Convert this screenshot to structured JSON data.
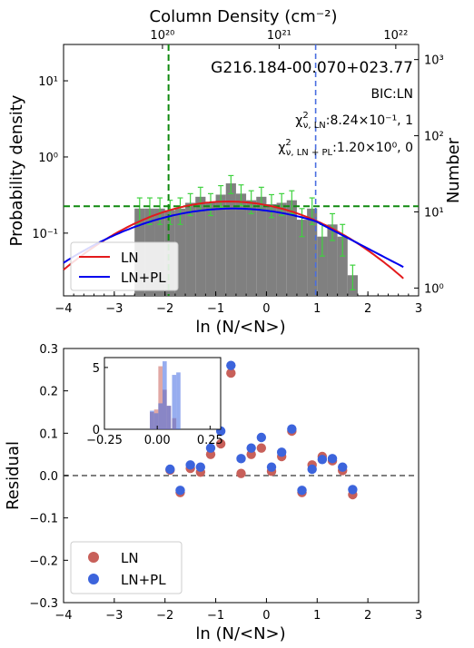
{
  "chart_data": [
    {
      "type": "bar",
      "panel": "top",
      "title": "G216.184-00.070+023.77",
      "xlabel": "ln (N/<N>)",
      "ylabel": "Probability density",
      "ylabel_right": "Number",
      "xlabel_top": "Column Density (cm⁻²)",
      "xlim": [
        -4,
        3
      ],
      "ylim_log": [
        0.015,
        30
      ],
      "y_scale": "log",
      "x_ticks": [
        "−4",
        "−3",
        "−2",
        "−1",
        "0",
        "1",
        "2",
        "3"
      ],
      "y_ticks": [
        {
          "value": 0.1,
          "label": "10⁻¹"
        },
        {
          "value": 1,
          "label": "10⁰"
        },
        {
          "value": 10,
          "label": "10¹"
        }
      ],
      "top_ticks": [
        {
          "ln_value": -2.05,
          "label": "10²⁰"
        },
        {
          "ln_value": 0.25,
          "label": "10²¹"
        },
        {
          "ln_value": 2.55,
          "label": "10²²"
        }
      ],
      "right_ticks": [
        {
          "value": 0.019,
          "label": "10⁰"
        },
        {
          "value": 0.19,
          "label": "10¹"
        },
        {
          "value": 1.9,
          "label": "10²"
        },
        {
          "value": 19,
          "label": "10³"
        }
      ],
      "histogram": {
        "bin_width": 0.2,
        "bins": [
          {
            "x": -2.5,
            "y": 0.21,
            "err": 0.08
          },
          {
            "x": -2.3,
            "y": 0.21,
            "err": 0.08
          },
          {
            "x": -2.1,
            "y": 0.21,
            "err": 0.08
          },
          {
            "x": -1.9,
            "y": 0.2,
            "err": 0.07
          },
          {
            "x": -1.7,
            "y": 0.21,
            "err": 0.08
          },
          {
            "x": -1.5,
            "y": 0.25,
            "err": 0.08
          },
          {
            "x": -1.3,
            "y": 0.3,
            "err": 0.1
          },
          {
            "x": -1.1,
            "y": 0.25,
            "err": 0.08
          },
          {
            "x": -0.9,
            "y": 0.32,
            "err": 0.1
          },
          {
            "x": -0.7,
            "y": 0.45,
            "err": 0.12
          },
          {
            "x": -0.5,
            "y": 0.33,
            "err": 0.1
          },
          {
            "x": -0.3,
            "y": 0.27,
            "err": 0.09
          },
          {
            "x": -0.1,
            "y": 0.3,
            "err": 0.1
          },
          {
            "x": 0.1,
            "y": 0.24,
            "err": 0.08
          },
          {
            "x": 0.3,
            "y": 0.25,
            "err": 0.08
          },
          {
            "x": 0.5,
            "y": 0.27,
            "err": 0.09
          },
          {
            "x": 0.7,
            "y": 0.15,
            "err": 0.06
          },
          {
            "x": 0.9,
            "y": 0.21,
            "err": 0.08
          },
          {
            "x": 1.1,
            "y": 0.09,
            "err": 0.04
          },
          {
            "x": 1.3,
            "y": 0.13,
            "err": 0.05
          },
          {
            "x": 1.5,
            "y": 0.09,
            "err": 0.04
          },
          {
            "x": 1.7,
            "y": 0.028,
            "err": 0.01
          }
        ]
      },
      "threshold_lines": {
        "vertical_green": -1.93,
        "vertical_blue": 0.97,
        "horizontal_green": 0.225
      },
      "series": [
        {
          "name": "LN",
          "color": "#e31a1c",
          "mu": -0.75,
          "sigma": 1.6,
          "peak": 0.26
        },
        {
          "name": "LN+PL",
          "color": "#0000ee",
          "mu": -0.65,
          "sigma": 1.85,
          "peak": 0.21,
          "pl_start": 0.97,
          "pl_slope": -0.8
        }
      ],
      "legend": [
        "LN",
        "LN+PL"
      ],
      "legend_position": "lower-left",
      "annotations": [
        {
          "text": "BIC:LN"
        },
        {
          "prefix": "χ",
          "sup": "2",
          "sub": "ν, LN",
          "suffix": ":8.24×10⁻¹, 1"
        },
        {
          "prefix": "χ",
          "sup": "2",
          "sub": "ν, LN + PL",
          "suffix": ":1.20×10⁰, 0"
        }
      ]
    },
    {
      "type": "scatter",
      "panel": "bottom",
      "xlabel": "ln (N/<N>)",
      "ylabel": "Residual",
      "xlim": [
        -4,
        3
      ],
      "ylim": [
        -0.3,
        0.3
      ],
      "x_ticks": [
        "−4",
        "−3",
        "−2",
        "−1",
        "0",
        "1",
        "2",
        "3"
      ],
      "y_ticks": [
        "−0.3",
        "−0.2",
        "−0.1",
        "0.0",
        "0.1",
        "0.2",
        "0.3"
      ],
      "zero_line": true,
      "legend": [
        "LN",
        "LN+PL"
      ],
      "legend_position": "lower-left",
      "series": [
        {
          "name": "LN",
          "color": "#c8605a",
          "points": [
            [
              -1.9,
              0.013
            ],
            [
              -1.7,
              -0.04
            ],
            [
              -1.5,
              0.017
            ],
            [
              -1.3,
              0.008
            ],
            [
              -1.1,
              0.05
            ],
            [
              -0.9,
              0.075
            ],
            [
              -0.7,
              0.242
            ],
            [
              -0.5,
              0.005
            ],
            [
              -0.3,
              0.05
            ],
            [
              -0.1,
              0.065
            ],
            [
              0.1,
              0.01
            ],
            [
              0.3,
              0.045
            ],
            [
              0.5,
              0.105
            ],
            [
              0.7,
              -0.04
            ],
            [
              0.9,
              0.025
            ],
            [
              1.1,
              0.045
            ],
            [
              1.3,
              0.035
            ],
            [
              1.5,
              0.012
            ],
            [
              1.7,
              -0.045
            ]
          ]
        },
        {
          "name": "LN+PL",
          "color": "#3c64dc",
          "points": [
            [
              -1.9,
              0.015
            ],
            [
              -1.7,
              -0.035
            ],
            [
              -1.5,
              0.025
            ],
            [
              -1.3,
              0.02
            ],
            [
              -1.1,
              0.065
            ],
            [
              -0.9,
              0.105
            ],
            [
              -0.7,
              0.26
            ],
            [
              -0.5,
              0.04
            ],
            [
              -0.3,
              0.065
            ],
            [
              -0.1,
              0.09
            ],
            [
              0.1,
              0.02
            ],
            [
              0.3,
              0.055
            ],
            [
              0.5,
              0.11
            ],
            [
              0.7,
              -0.035
            ],
            [
              0.9,
              0.015
            ],
            [
              1.1,
              0.038
            ],
            [
              1.3,
              0.04
            ],
            [
              1.5,
              0.02
            ],
            [
              1.7,
              -0.033
            ]
          ]
        }
      ],
      "inset": {
        "type": "histogram",
        "xlim": [
          -0.25,
          0.3
        ],
        "x_ticks": [
          "−0.25",
          "0.00",
          "0.25"
        ],
        "series": [
          {
            "name": "LN",
            "color": "#c8605a",
            "bins": [
              {
                "x": -0.025,
                "count": 1.4
              },
              {
                "x": -0.005,
                "count": 1.6
              },
              {
                "x": 0.015,
                "count": 5.1
              },
              {
                "x": 0.035,
                "count": 3.2
              },
              {
                "x": 0.055,
                "count": 1.9
              },
              {
                "x": 0.08,
                "count": 0.9
              }
            ]
          },
          {
            "name": "LN+PL",
            "color": "#4169e1",
            "bins": [
              {
                "x": -0.025,
                "count": 1.5
              },
              {
                "x": -0.005,
                "count": 1.3
              },
              {
                "x": 0.015,
                "count": 2.1
              },
              {
                "x": 0.035,
                "count": 5.5
              },
              {
                "x": 0.055,
                "count": 1.9
              },
              {
                "x": 0.08,
                "count": 4.4
              },
              {
                "x": 0.1,
                "count": 4.6
              }
            ]
          }
        ],
        "ylim": [
          0,
          5.8
        ],
        "y_ticks": [
          "0",
          "5"
        ]
      }
    }
  ]
}
